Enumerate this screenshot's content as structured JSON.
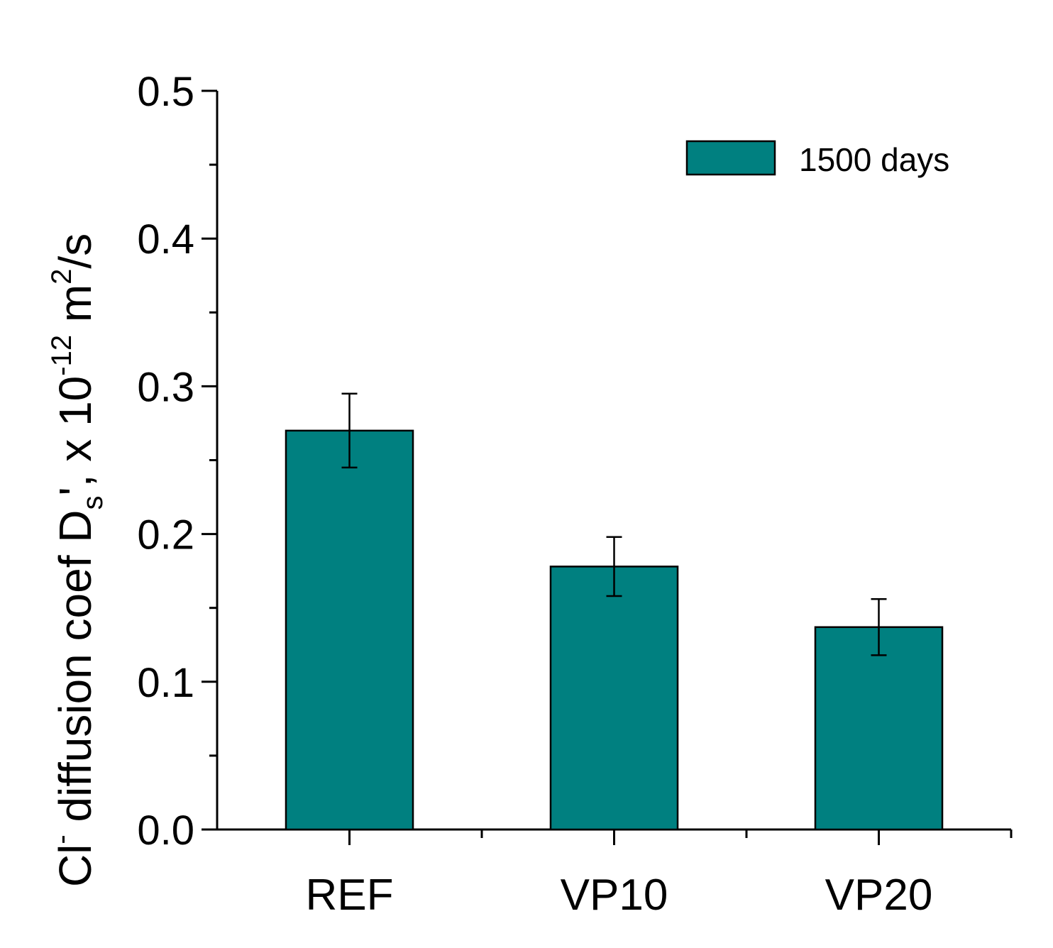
{
  "chart_data": {
    "type": "bar",
    "title": "",
    "categories": [
      "REF",
      "VP10",
      "VP20"
    ],
    "series": [
      {
        "name": "1500 days",
        "color": "#008080",
        "values": [
          0.27,
          0.178,
          0.137
        ],
        "error": [
          0.025,
          0.02,
          0.019
        ]
      }
    ],
    "ylim": [
      0,
      0.5
    ],
    "yticks": [
      "0.0",
      "0.1",
      "0.2",
      "0.3",
      "0.4",
      "0.5"
    ],
    "ylabel": {
      "main": "Cl",
      "sup1": "-",
      "part2": " diffusion coef D",
      "sub": "s",
      "part3": "', x 10",
      "sup2": "-12",
      "part4": " m",
      "sup3": "2",
      "part5": "/s"
    },
    "xlabel": "",
    "legend_position": "top-right",
    "grid": false
  }
}
